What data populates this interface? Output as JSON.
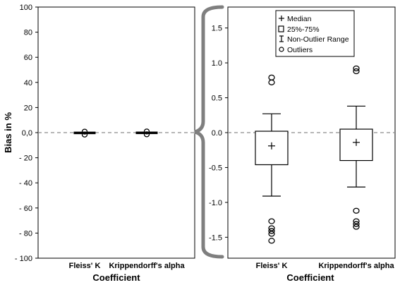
{
  "figure": {
    "left_xlabel": "Coefficient",
    "right_xlabel": "Coefficient"
  },
  "legend": {
    "median": "Median",
    "box": "25%-75%",
    "whisker": "Non-Outlier Range",
    "outliers": "Outliers"
  },
  "chart_data": [
    {
      "type": "box",
      "panel": "left",
      "ylabel": "Bias in %",
      "ylim": [
        -100,
        100
      ],
      "yticks": [
        100,
        80,
        60,
        40,
        20,
        0,
        -20,
        -40,
        -60,
        -80,
        -100
      ],
      "ytick_labels": [
        "100",
        "80",
        "60",
        "40",
        "20",
        "0,0",
        "- 20",
        "- 40",
        "- 60",
        "- 80",
        "- 100"
      ],
      "reference_line": 0,
      "categories": [
        "Fleiss' K",
        "Krippendorff's alpha"
      ],
      "boxes": [
        {
          "q1": -0.46,
          "median": -0.19,
          "q3": 0.02,
          "whisker_low": -0.91,
          "whisker_high": 0.27,
          "outliers": [
            0.79,
            0.72,
            -1.27,
            -1.37,
            -1.41,
            -1.45,
            -1.55
          ]
        },
        {
          "q1": -0.4,
          "median": -0.14,
          "q3": 0.05,
          "whisker_low": -0.78,
          "whisker_high": 0.38,
          "outliers": [
            0.92,
            0.88,
            -1.12,
            -1.27,
            -1.31,
            -1.35
          ]
        }
      ]
    },
    {
      "type": "box",
      "panel": "right",
      "ylim": [
        -1.8,
        1.8
      ],
      "yticks": [
        1.5,
        1.0,
        0.5,
        0.0,
        -0.5,
        -1.0,
        -1.5
      ],
      "ytick_labels": [
        "1.5",
        "1.0",
        "0.5",
        "0.0",
        "-0.5",
        "-1.0",
        "-1.5"
      ],
      "reference_line": 0,
      "categories": [
        "Fleiss' K",
        "Krippendorff's alpha"
      ],
      "boxes": [
        {
          "q1": -0.46,
          "median": -0.19,
          "q3": 0.02,
          "whisker_low": -0.91,
          "whisker_high": 0.27,
          "outliers": [
            0.79,
            0.72,
            -1.27,
            -1.37,
            -1.41,
            -1.45,
            -1.55
          ]
        },
        {
          "q1": -0.4,
          "median": -0.14,
          "q3": 0.05,
          "whisker_low": -0.78,
          "whisker_high": 0.38,
          "outliers": [
            0.92,
            0.88,
            -1.12,
            -1.27,
            -1.31,
            -1.35
          ]
        }
      ]
    }
  ]
}
